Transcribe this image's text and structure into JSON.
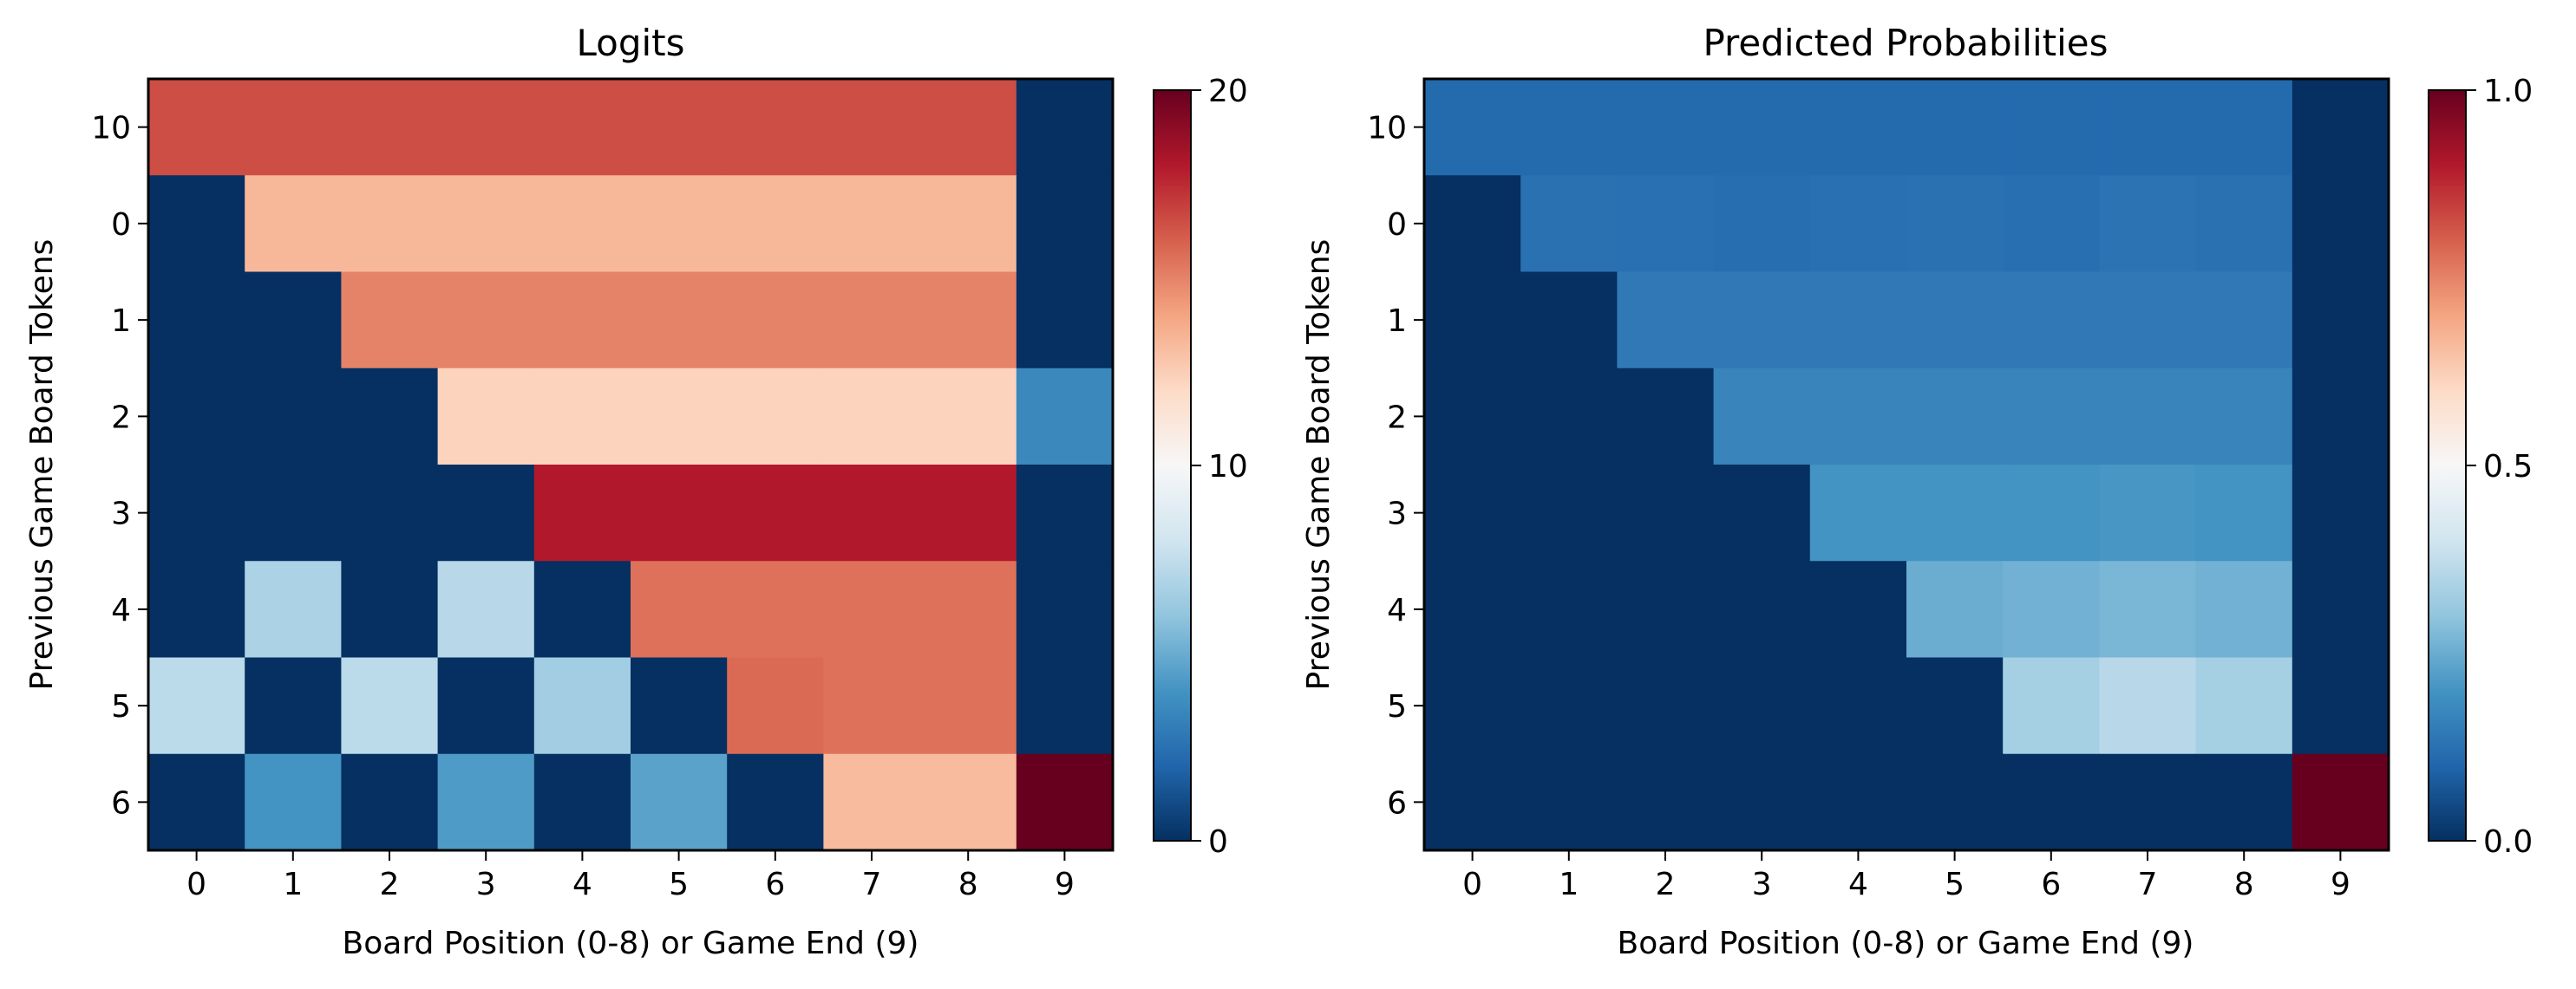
{
  "chart_data": [
    {
      "type": "heatmap",
      "title": "Logits",
      "xlabel": "Board Position (0-8) or Game End (9)",
      "ylabel": "Previous Game Board Tokens",
      "x_ticks": [
        "0",
        "1",
        "2",
        "3",
        "4",
        "5",
        "6",
        "7",
        "8",
        "9"
      ],
      "y_ticks": [
        "10",
        "0",
        "1",
        "2",
        "3",
        "4",
        "5",
        "6"
      ],
      "colormap": "RdBu_r",
      "vmin": 0,
      "vmax": 20,
      "colorbar_ticks": [
        {
          "value": 0,
          "label": "0"
        },
        {
          "value": 10,
          "label": "10"
        },
        {
          "value": 20,
          "label": "20"
        }
      ],
      "values": [
        [
          16.5,
          16.5,
          16.5,
          16.5,
          16.5,
          16.5,
          16.5,
          16.5,
          16.5,
          0
        ],
        [
          0,
          13.3,
          13.3,
          13.3,
          13.3,
          13.3,
          13.3,
          13.3,
          13.3,
          0
        ],
        [
          0,
          0,
          15.0,
          15.0,
          15.0,
          15.0,
          15.0,
          15.0,
          15.0,
          0
        ],
        [
          0,
          0,
          0,
          12.3,
          12.3,
          12.3,
          12.3,
          12.3,
          12.3,
          3.5
        ],
        [
          0,
          0,
          0,
          0,
          18.0,
          18.0,
          18.0,
          18.0,
          18.0,
          0
        ],
        [
          0,
          6.8,
          0,
          7.2,
          0,
          15.5,
          15.5,
          15.5,
          15.5,
          0
        ],
        [
          7.3,
          0,
          7.3,
          0,
          6.5,
          0,
          15.7,
          15.5,
          15.5,
          0
        ],
        [
          0,
          4.0,
          0,
          4.3,
          0,
          4.6,
          0,
          13.2,
          13.2,
          20
        ]
      ]
    },
    {
      "type": "heatmap",
      "title": "Predicted Probabilities",
      "xlabel": "Board Position (0-8) or Game End (9)",
      "ylabel": "Previous Game Board Tokens",
      "x_ticks": [
        "0",
        "1",
        "2",
        "3",
        "4",
        "5",
        "6",
        "7",
        "8",
        "9"
      ],
      "y_ticks": [
        "10",
        "0",
        "1",
        "2",
        "3",
        "4",
        "5",
        "6"
      ],
      "colormap": "RdBu_r",
      "vmin": 0.0,
      "vmax": 1.0,
      "colorbar_ticks": [
        {
          "value": 0,
          "label": "0.0"
        },
        {
          "value": 0.5,
          "label": "0.5"
        },
        {
          "value": 1.0,
          "label": "1.0"
        }
      ],
      "values": [
        [
          0.11,
          0.11,
          0.11,
          0.11,
          0.11,
          0.11,
          0.11,
          0.11,
          0.11,
          0
        ],
        [
          0,
          0.125,
          0.122,
          0.118,
          0.122,
          0.125,
          0.12,
          0.128,
          0.125,
          0
        ],
        [
          0,
          0,
          0.143,
          0.143,
          0.143,
          0.143,
          0.143,
          0.143,
          0.143,
          0
        ],
        [
          0,
          0,
          0,
          0.167,
          0.167,
          0.167,
          0.167,
          0.167,
          0.167,
          0
        ],
        [
          0,
          0,
          0,
          0,
          0.2,
          0.2,
          0.2,
          0.205,
          0.2,
          0
        ],
        [
          0,
          0,
          0,
          0,
          0,
          0.25,
          0.26,
          0.27,
          0.26,
          0
        ],
        [
          0,
          0,
          0,
          0,
          0,
          0,
          0.33,
          0.36,
          0.33,
          0
        ],
        [
          0,
          0,
          0,
          0,
          0,
          0,
          0,
          0,
          0,
          1.0
        ]
      ]
    }
  ]
}
